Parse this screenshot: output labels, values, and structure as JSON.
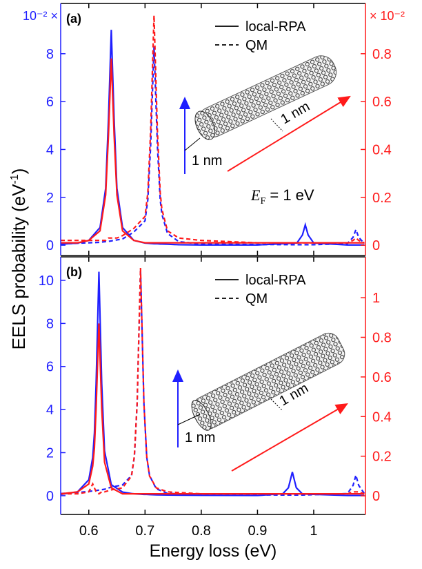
{
  "chart_data": [
    {
      "type": "line",
      "panel_label": "(a)",
      "y_multiplier": "10⁻² ×",
      "y2_multiplier": "× 10⁻²",
      "x": [
        0.55,
        0.58,
        0.6,
        0.62,
        0.63,
        0.635,
        0.64,
        0.645,
        0.65,
        0.66,
        0.68,
        0.7,
        0.705,
        0.71,
        0.716,
        0.722,
        0.727,
        0.73,
        0.74,
        0.76,
        0.8,
        0.9,
        0.97,
        0.98,
        0.985,
        0.99,
        1.0,
        1.06,
        1.07,
        1.075,
        1.08,
        1.09
      ],
      "xlim": [
        0.55,
        1.092
      ],
      "xticks": [
        0.6,
        0.7,
        0.8,
        0.9,
        1
      ],
      "ylim": [
        -0.43,
        10.1
      ],
      "yticks": [
        0,
        2,
        4,
        6,
        8
      ],
      "y2lim": [
        -0.043,
        1.01
      ],
      "y2ticks": [
        0,
        0.2,
        0.4,
        0.6,
        0.8
      ],
      "legend": [
        {
          "label": "local-RPA",
          "style": "solid"
        },
        {
          "label": "QM",
          "style": "dashed"
        }
      ],
      "annotation": [
        "E",
        "F",
        " = 1 eV"
      ],
      "inset_labels": [
        "1 nm",
        "1 nm"
      ],
      "series": [
        {
          "color": "#1f1fff",
          "style": "solid",
          "axis": "y",
          "values": [
            0.04,
            0.09,
            0.2,
            0.74,
            2.38,
            5.3,
            9.0,
            5.3,
            2.38,
            0.74,
            0.2,
            0.09,
            0.08,
            0.07,
            0.06,
            0.06,
            0.05,
            0.05,
            0.04,
            0.02,
            0.01,
            0.01,
            0.09,
            0.43,
            0.85,
            0.43,
            0.09,
            0.01,
            0.01,
            0.01,
            0.01,
            0.01
          ]
        },
        {
          "color": "#1f1fff",
          "style": "dashed",
          "axis": "y",
          "values": [
            0.05,
            0.08,
            0.1,
            0.12,
            0.15,
            0.16,
            0.18,
            0.2,
            0.22,
            0.26,
            0.55,
            1.02,
            1.9,
            4.15,
            8.3,
            4.15,
            1.9,
            1.29,
            0.49,
            0.15,
            0.05,
            0.03,
            0.02,
            0.02,
            0.02,
            0.02,
            0.02,
            0.07,
            0.33,
            0.65,
            0.33,
            0.07
          ]
        },
        {
          "color": "#ff1a1a",
          "style": "solid",
          "axis": "y2",
          "values": [
            0.01,
            0.01,
            0.02,
            0.06,
            0.21,
            0.46,
            0.78,
            0.46,
            0.21,
            0.06,
            0.02,
            0.01,
            0.01,
            0.01,
            0.01,
            0.01,
            0.01,
            0.01,
            0.01,
            0.01,
            0.01,
            0.01,
            0.01,
            0.01,
            0.01,
            0.01,
            0.01,
            0.01,
            0.01,
            0.01,
            0.01,
            0.01
          ]
        },
        {
          "color": "#ff1a1a",
          "style": "dashed",
          "axis": "y2",
          "values": [
            0.02,
            0.02,
            0.02,
            0.02,
            0.02,
            0.03,
            0.03,
            0.03,
            0.03,
            0.04,
            0.07,
            0.12,
            0.22,
            0.48,
            0.96,
            0.48,
            0.22,
            0.15,
            0.06,
            0.03,
            0.02,
            0.01,
            0.01,
            0.01,
            0.01,
            0.01,
            0.01,
            0.01,
            0.02,
            0.03,
            0.02,
            0.01
          ]
        }
      ]
    },
    {
      "type": "line",
      "panel_label": "(b)",
      "x": [
        0.55,
        0.58,
        0.6,
        0.607,
        0.61,
        0.613,
        0.618,
        0.623,
        0.628,
        0.64,
        0.66,
        0.676,
        0.681,
        0.686,
        0.692,
        0.698,
        0.703,
        0.708,
        0.72,
        0.74,
        0.8,
        0.9,
        0.945,
        0.955,
        0.962,
        0.969,
        0.98,
        1.06,
        1.07,
        1.075,
        1.08,
        1.09
      ],
      "xlim": [
        0.55,
        1.092
      ],
      "xticks": [
        0.6,
        0.7,
        0.8,
        0.9,
        1
      ],
      "xlabel": "Energy loss (eV)",
      "ylabel": [
        "EELS probability (eV",
        "-1",
        ")"
      ],
      "ylim": [
        -0.87,
        11.09
      ],
      "yticks": [
        0,
        2,
        4,
        6,
        8,
        10
      ],
      "y2lim": [
        -0.094,
        1.206
      ],
      "y2ticks": [
        0,
        0.2,
        0.4,
        0.6,
        0.8,
        1
      ],
      "legend": [
        {
          "label": "local-RPA",
          "style": "solid"
        },
        {
          "label": "QM",
          "style": "dashed"
        }
      ],
      "inset_labels": [
        "1 nm",
        "1 nm"
      ],
      "series": [
        {
          "color": "#1f1fff",
          "style": "solid",
          "axis": "y",
          "values": [
            0.06,
            0.18,
            0.74,
            1.78,
            2.92,
            5.2,
            10.4,
            5.2,
            2.08,
            0.51,
            0.17,
            0.1,
            0.09,
            0.08,
            0.07,
            0.06,
            0.06,
            0.05,
            0.04,
            0.03,
            0.02,
            0.01,
            0.09,
            0.37,
            1.1,
            0.37,
            0.08,
            0.01,
            0.01,
            0.01,
            0.01,
            0.01
          ]
        },
        {
          "color": "#1f1fff",
          "style": "dashed",
          "axis": "y",
          "values": [
            0.1,
            0.15,
            0.2,
            0.22,
            0.23,
            0.24,
            0.26,
            0.28,
            0.3,
            0.4,
            0.5,
            0.94,
            1.8,
            4.3,
            10.5,
            4.3,
            1.8,
            0.94,
            0.32,
            0.11,
            0.05,
            0.04,
            0.03,
            0.03,
            0.03,
            0.03,
            0.03,
            0.1,
            0.48,
            0.95,
            0.48,
            0.1
          ]
        },
        {
          "color": "#ff1a1a",
          "style": "solid",
          "axis": "y2",
          "values": [
            0.01,
            0.02,
            0.06,
            0.15,
            0.24,
            0.44,
            0.87,
            0.44,
            0.17,
            0.04,
            0.01,
            0.01,
            0.01,
            0.01,
            0.01,
            0.01,
            0.01,
            0.01,
            0.01,
            0.01,
            0.01,
            0.01,
            0.01,
            0.01,
            0.01,
            0.01,
            0.01,
            0.01,
            0.01,
            0.01,
            0.01,
            0.01
          ]
        },
        {
          "color": "#ff1a1a",
          "style": "dashed",
          "axis": "y2",
          "values": [
            0.01,
            0.01,
            0.02,
            0.06,
            0.04,
            0.02,
            0.01,
            0.02,
            0.02,
            0.03,
            0.04,
            0.1,
            0.2,
            0.47,
            1.15,
            0.47,
            0.2,
            0.1,
            0.04,
            0.02,
            0.01,
            0.01,
            0.01,
            0.01,
            0.01,
            0.01,
            0.01,
            0.01,
            0.02,
            0.02,
            0.02,
            0.01
          ]
        }
      ]
    }
  ]
}
